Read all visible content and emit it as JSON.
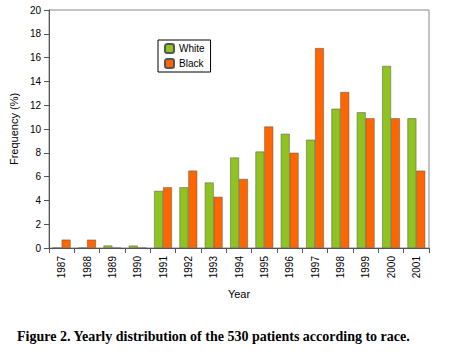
{
  "chart_data": {
    "type": "bar",
    "title": "Figure 2. Yearly distribution of the 530 patients according to race.",
    "x_label": "Year",
    "y_label": "Frequency (%)",
    "categories": [
      "1987",
      "1988",
      "1989",
      "1990",
      "1991",
      "1992",
      "1993",
      "1994",
      "1995",
      "1996",
      "1997",
      "1998",
      "1999",
      "2000",
      "2001"
    ],
    "series": [
      {
        "name": "White",
        "color": "#8fc31f",
        "values": [
          0,
          0,
          0.2,
          0.2,
          4.8,
          5.1,
          5.5,
          7.6,
          8.1,
          9.6,
          9.1,
          11.7,
          11.4,
          15.3,
          10.9
        ]
      },
      {
        "name": "Black",
        "color": "#ff6600",
        "values": [
          0.7,
          0.7,
          0,
          0,
          5.1,
          6.5,
          4.3,
          5.8,
          10.2,
          8.0,
          16.8,
          13.1,
          10.9,
          10.9,
          6.5
        ]
      }
    ],
    "ylim": [
      0,
      20
    ],
    "yticks": [
      0,
      2,
      4,
      6,
      8,
      10,
      12,
      14,
      16,
      18,
      20
    ],
    "grid": false,
    "legend": "upper left"
  }
}
